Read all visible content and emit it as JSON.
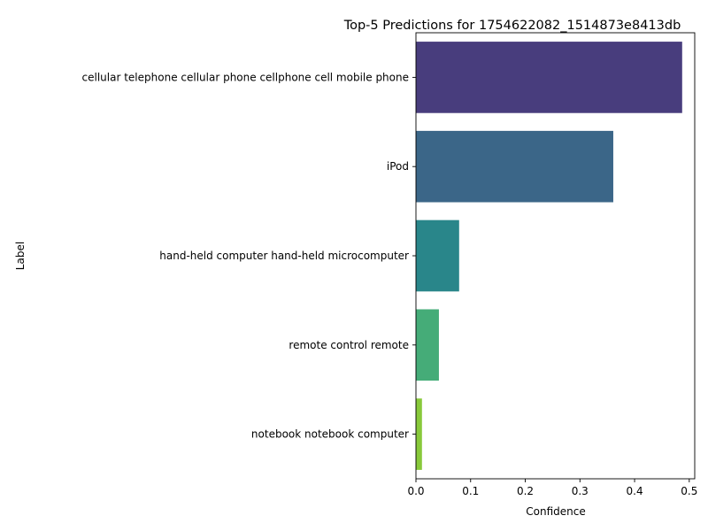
{
  "chart_data": {
    "type": "bar",
    "orientation": "horizontal",
    "title": "Top-5 Predictions for 1754622082_1514873e8413db",
    "xlabel": "Confidence",
    "ylabel": "Label",
    "categories": [
      "cellular telephone cellular phone cellphone cell mobile phone",
      "iPod",
      "hand-held computer hand-held microcomputer",
      "remote control remote",
      "notebook notebook computer"
    ],
    "values": [
      0.487,
      0.361,
      0.079,
      0.042,
      0.011
    ],
    "colors": [
      "#483d7d",
      "#3b6688",
      "#29868a",
      "#45ac78",
      "#88c93a"
    ],
    "xlim": [
      0,
      0.51
    ],
    "xticks": [
      0.0,
      0.1,
      0.2,
      0.3,
      0.4,
      0.5
    ],
    "xtick_labels": [
      "0.0",
      "0.1",
      "0.2",
      "0.3",
      "0.4",
      "0.5"
    ],
    "grid": false
  }
}
